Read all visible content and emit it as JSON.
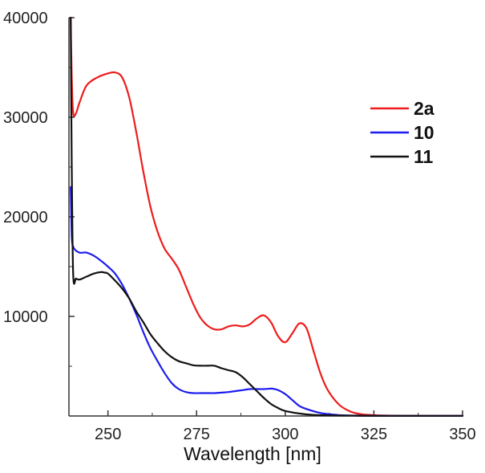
{
  "chart_data": {
    "type": "line",
    "title": "",
    "xlabel": "Wavelength [nm]",
    "ylabel": "",
    "xlim": [
      239,
      350
    ],
    "ylim": [
      0,
      40000
    ],
    "x_ticks": [
      250,
      275,
      300,
      325,
      350
    ],
    "y_ticks": [
      10000,
      20000,
      30000,
      40000
    ],
    "x_tick_labels": [
      "250",
      "275",
      "300",
      "325",
      "350"
    ],
    "y_tick_labels": [
      "10000",
      "20000",
      "30000",
      "40000"
    ],
    "grid": false,
    "legend_position": "top-right",
    "series": [
      {
        "name": "2a",
        "color": "#ee1c1c",
        "x": [
          239.5,
          239.8,
          240.2,
          241,
          242,
          244,
          247,
          250,
          252,
          254,
          256,
          258,
          260,
          262,
          264,
          266,
          268,
          270,
          272,
          274,
          276,
          278,
          280,
          282,
          284,
          286,
          288,
          290,
          292,
          294,
          296,
          298,
          300,
          302,
          304,
          306,
          308,
          310,
          312,
          315,
          318,
          321,
          325,
          330,
          340,
          350
        ],
        "values": [
          40000,
          34000,
          30400,
          30400,
          31500,
          33200,
          34000,
          34400,
          34500,
          34000,
          32000,
          28500,
          24500,
          21000,
          18500,
          16800,
          15800,
          14700,
          13000,
          11300,
          9900,
          9100,
          8700,
          8700,
          9000,
          9100,
          9000,
          9200,
          9800,
          10100,
          9400,
          8000,
          7400,
          8300,
          9300,
          8800,
          6500,
          4200,
          2600,
          1200,
          500,
          200,
          80,
          30,
          20,
          20
        ]
      },
      {
        "name": "10",
        "color": "#1c1cee",
        "x": [
          239.5,
          239.8,
          240.2,
          241,
          242,
          243,
          244,
          246,
          248,
          250,
          252,
          254,
          256,
          258,
          260,
          262,
          264,
          266,
          268,
          270,
          272,
          274,
          276,
          278,
          280,
          282,
          284,
          286,
          288,
          290,
          292,
          294,
          296,
          297,
          298,
          300,
          302,
          304,
          306,
          310,
          315,
          320,
          330,
          340,
          350
        ],
        "values": [
          23000,
          18000,
          17000,
          16600,
          16400,
          16400,
          16400,
          16100,
          15600,
          15000,
          14300,
          13200,
          11800,
          10200,
          8400,
          6800,
          5500,
          4300,
          3300,
          2700,
          2400,
          2300,
          2300,
          2300,
          2300,
          2350,
          2400,
          2500,
          2600,
          2700,
          2700,
          2700,
          2750,
          2700,
          2600,
          2200,
          1600,
          1000,
          700,
          300,
          100,
          40,
          20,
          20,
          20
        ]
      },
      {
        "name": "11",
        "color": "#111111",
        "x": [
          239.5,
          239.8,
          240.2,
          241,
          242,
          244,
          246,
          248,
          249,
          250,
          252,
          254,
          256,
          258,
          260,
          262,
          264,
          266,
          268,
          270,
          272,
          274,
          276,
          278,
          280,
          282,
          284,
          286,
          288,
          290,
          292,
          294,
          296,
          298,
          300,
          305,
          310,
          320,
          330,
          340,
          350
        ],
        "values": [
          40000,
          25000,
          14200,
          13800,
          13700,
          14000,
          14300,
          14450,
          14400,
          14300,
          13600,
          12800,
          11800,
          10500,
          9400,
          8200,
          7300,
          6500,
          5900,
          5500,
          5300,
          5100,
          5050,
          5050,
          5050,
          4800,
          4600,
          4400,
          3900,
          3200,
          2500,
          1800,
          1200,
          800,
          500,
          200,
          80,
          30,
          20,
          20,
          20
        ]
      }
    ],
    "legend": [
      {
        "label": "2a",
        "color": "#ee1c1c"
      },
      {
        "label": "10",
        "color": "#1c1cee"
      },
      {
        "label": "11",
        "color": "#111111"
      }
    ]
  }
}
